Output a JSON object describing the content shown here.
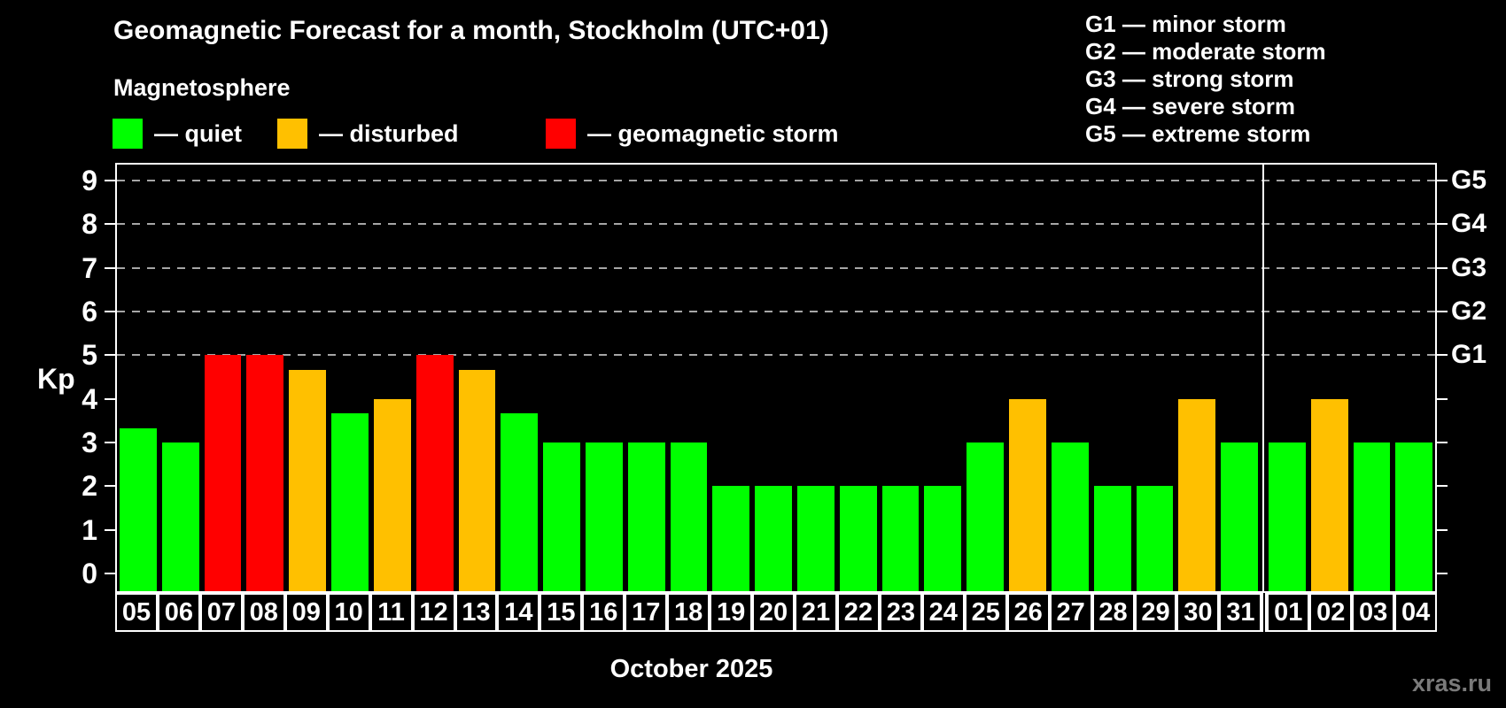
{
  "watermark": "xras.ru",
  "chart_data": {
    "type": "bar",
    "title": "Geomagnetic Forecast for a month, Stockholm (UTC+01)",
    "subtitle": "Magnetosphere",
    "xlabel": "October 2025",
    "ylabel": "Kp",
    "ylim": [
      -0.4,
      9.36
    ],
    "yticks": [
      0,
      1,
      2,
      3,
      4,
      5,
      6,
      7,
      8,
      9
    ],
    "gridlines_kp": [
      5,
      6,
      7,
      8,
      9
    ],
    "grid": "dashed horizontal at Kp 5-9",
    "legend_position": "top-left",
    "legend": [
      {
        "label": "— quiet",
        "color": "#00ff00",
        "status": "quiet"
      },
      {
        "label": "— disturbed",
        "color": "#ffc000",
        "status": "disturbed"
      },
      {
        "label": "— geomagnetic storm",
        "color": "#ff0000",
        "status": "storm"
      }
    ],
    "g_legend": [
      "G1 — minor storm",
      "G2 — moderate storm",
      "G3 — strong storm",
      "G4 — severe storm",
      "G5 — extreme storm"
    ],
    "right_axis": [
      {
        "kp": 5,
        "label": "G1"
      },
      {
        "kp": 6,
        "label": "G2"
      },
      {
        "kp": 7,
        "label": "G3"
      },
      {
        "kp": 8,
        "label": "G4"
      },
      {
        "kp": 9,
        "label": "G5"
      }
    ],
    "colors": {
      "quiet": "#00ff00",
      "disturbed": "#ffc000",
      "storm": "#ff0000"
    },
    "month_boundary_after_day": "31",
    "bars": [
      {
        "day": "05",
        "kp": 3.33,
        "status": "quiet"
      },
      {
        "day": "06",
        "kp": 3.0,
        "status": "quiet"
      },
      {
        "day": "07",
        "kp": 5.0,
        "status": "storm"
      },
      {
        "day": "08",
        "kp": 5.0,
        "status": "storm"
      },
      {
        "day": "09",
        "kp": 4.67,
        "status": "disturbed"
      },
      {
        "day": "10",
        "kp": 3.67,
        "status": "quiet"
      },
      {
        "day": "11",
        "kp": 4.0,
        "status": "disturbed"
      },
      {
        "day": "12",
        "kp": 5.0,
        "status": "storm"
      },
      {
        "day": "13",
        "kp": 4.67,
        "status": "disturbed"
      },
      {
        "day": "14",
        "kp": 3.67,
        "status": "quiet"
      },
      {
        "day": "15",
        "kp": 3.0,
        "status": "quiet"
      },
      {
        "day": "16",
        "kp": 3.0,
        "status": "quiet"
      },
      {
        "day": "17",
        "kp": 3.0,
        "status": "quiet"
      },
      {
        "day": "18",
        "kp": 3.0,
        "status": "quiet"
      },
      {
        "day": "19",
        "kp": 2.0,
        "status": "quiet"
      },
      {
        "day": "20",
        "kp": 2.0,
        "status": "quiet"
      },
      {
        "day": "21",
        "kp": 2.0,
        "status": "quiet"
      },
      {
        "day": "22",
        "kp": 2.0,
        "status": "quiet"
      },
      {
        "day": "23",
        "kp": 2.0,
        "status": "quiet"
      },
      {
        "day": "24",
        "kp": 2.0,
        "status": "quiet"
      },
      {
        "day": "25",
        "kp": 3.0,
        "status": "quiet"
      },
      {
        "day": "26",
        "kp": 4.0,
        "status": "disturbed"
      },
      {
        "day": "27",
        "kp": 3.0,
        "status": "quiet"
      },
      {
        "day": "28",
        "kp": 2.0,
        "status": "quiet"
      },
      {
        "day": "29",
        "kp": 2.0,
        "status": "quiet"
      },
      {
        "day": "30",
        "kp": 4.0,
        "status": "disturbed"
      },
      {
        "day": "31",
        "kp": 3.0,
        "status": "quiet"
      },
      {
        "day": "01",
        "kp": 3.0,
        "status": "quiet"
      },
      {
        "day": "02",
        "kp": 4.0,
        "status": "disturbed"
      },
      {
        "day": "03",
        "kp": 3.0,
        "status": "quiet"
      },
      {
        "day": "04",
        "kp": 3.0,
        "status": "quiet"
      }
    ]
  }
}
